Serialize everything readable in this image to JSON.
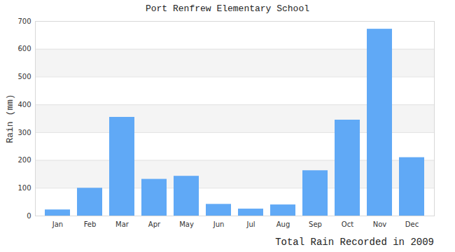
{
  "chart_data": {
    "type": "bar",
    "title": "Port Renfrew Elementary School",
    "subtitle": "Total Rain Recorded in 2009",
    "y_label": "Rain (mm)",
    "categories": [
      "Jan",
      "Feb",
      "Mar",
      "Apr",
      "May",
      "Jun",
      "Jul",
      "Aug",
      "Sep",
      "Oct",
      "Nov",
      "Dec"
    ],
    "values": [
      22,
      100,
      355,
      132,
      143,
      42,
      25,
      40,
      163,
      345,
      672,
      210
    ],
    "color": "#60a9f6",
    "ylim": [
      0,
      700
    ],
    "yticks": [
      0,
      100,
      200,
      300,
      400,
      500,
      600,
      700
    ],
    "grid": true
  }
}
